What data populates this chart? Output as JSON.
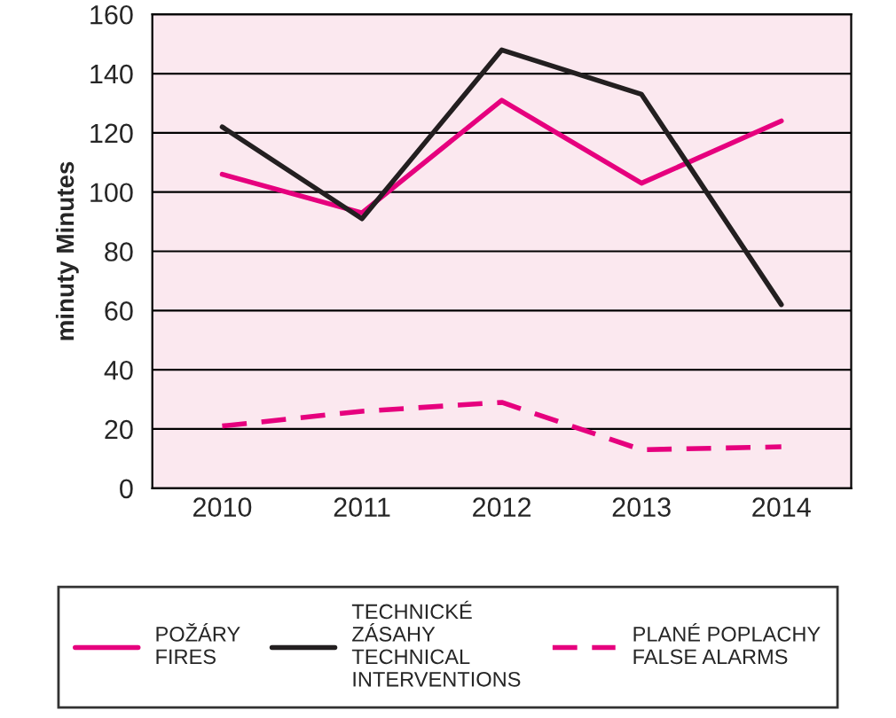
{
  "chart_data": {
    "type": "line",
    "ylabel": "minuty Minutes",
    "categories": [
      "2010",
      "2011",
      "2012",
      "2013",
      "2014"
    ],
    "series": [
      {
        "name": "POŽÁRY\nFIRES",
        "color": "#e6007e",
        "values": [
          106,
          93,
          131,
          103,
          124
        ],
        "line_style": "solid"
      },
      {
        "name": "TECHNICKÉ\nZÁSAHY\nTECHNICAL\nINTERVENTIONS",
        "color": "#231f20",
        "values": [
          122,
          91,
          148,
          133,
          62
        ],
        "line_style": "solid"
      },
      {
        "name": "PLANÉ POPLACHY\nFALSE ALARMS",
        "color": "#e6007e",
        "values": [
          21,
          26,
          29,
          13,
          14
        ],
        "line_style": "dashed"
      }
    ],
    "ylim": [
      0,
      160
    ],
    "yticks": [
      0,
      20,
      40,
      60,
      80,
      100,
      120,
      140,
      160
    ],
    "grid": "y",
    "legend": "bottom"
  }
}
